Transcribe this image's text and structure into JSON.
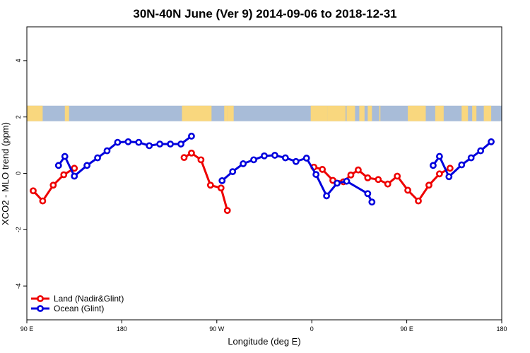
{
  "chart_data": {
    "type": "line",
    "title": "30N-40N June (Ver 9)   2014-09-06 to 2018-12-31",
    "xlabel": "Longitude (deg E)",
    "ylabel": "XCO2 - MLO trend (ppm)",
    "xlim": [
      90,
      540
    ],
    "ylim": [
      -5.2,
      5.2
    ],
    "x_ticks": [
      {
        "value": 90,
        "label": "90 E"
      },
      {
        "value": 180,
        "label": "180"
      },
      {
        "value": 270,
        "label": "90 W"
      },
      {
        "value": 360,
        "label": "0"
      },
      {
        "value": 450,
        "label": "90 E"
      },
      {
        "value": 540,
        "label": "180"
      }
    ],
    "y_ticks": [
      {
        "value": -4,
        "label": "-4"
      },
      {
        "value": -2,
        "label": "-2"
      },
      {
        "value": 0,
        "label": "0"
      },
      {
        "value": 2,
        "label": "2"
      },
      {
        "value": 4,
        "label": "4"
      }
    ],
    "legend_position": "bottom-left",
    "map_strip": {
      "y_range": [
        1.85,
        2.4
      ],
      "ocean_color": "#a8bcd8",
      "land_color": "#f9d77e",
      "land_x_ranges": [
        [
          90,
          105
        ],
        [
          126,
          130
        ],
        [
          237,
          265
        ],
        [
          277,
          280
        ],
        [
          280,
          286
        ],
        [
          359,
          375
        ],
        [
          375,
          392
        ],
        [
          393,
          401
        ],
        [
          405,
          410
        ],
        [
          413,
          417
        ],
        [
          424,
          425
        ],
        [
          451,
          468
        ],
        [
          477,
          485
        ],
        [
          502,
          508
        ],
        [
          512,
          516
        ],
        [
          523,
          530
        ]
      ]
    },
    "series": [
      {
        "name": "Land (Nadir&Glint)",
        "color": "#ee0000",
        "segments": [
          [
            [
              96,
              -0.62
            ],
            [
              105,
              -0.98
            ],
            [
              115,
              -0.42
            ],
            [
              125,
              -0.05
            ],
            [
              135,
              0.18
            ]
          ],
          [
            [
              239,
              0.56
            ],
            [
              246,
              0.72
            ],
            [
              255,
              0.48
            ],
            [
              264,
              -0.42
            ],
            [
              274,
              -0.52
            ],
            [
              280,
              -1.32
            ]
          ],
          [
            [
              362,
              0.22
            ],
            [
              370,
              0.14
            ],
            [
              380,
              -0.25
            ],
            [
              390,
              -0.3
            ],
            [
              397,
              -0.06
            ],
            [
              404,
              0.12
            ],
            [
              413,
              -0.16
            ],
            [
              423,
              -0.22
            ],
            [
              432,
              -0.38
            ],
            [
              441,
              -0.1
            ],
            [
              451,
              -0.6
            ],
            [
              461,
              -0.98
            ],
            [
              471,
              -0.42
            ],
            [
              481,
              -0.02
            ],
            [
              491,
              0.18
            ]
          ]
        ]
      },
      {
        "name": "Ocean (Glint)",
        "color": "#0000dd",
        "segments": [
          [
            [
              120,
              0.28
            ],
            [
              126,
              0.6
            ],
            [
              135,
              -0.1
            ],
            [
              147,
              0.28
            ],
            [
              157,
              0.55
            ],
            [
              166,
              0.8
            ],
            [
              176,
              1.1
            ],
            [
              186,
              1.12
            ],
            [
              196,
              1.1
            ],
            [
              206,
              0.98
            ],
            [
              216,
              1.04
            ],
            [
              226,
              1.04
            ],
            [
              236,
              1.04
            ],
            [
              246,
              1.32
            ]
          ],
          [
            [
              275,
              -0.26
            ],
            [
              285,
              0.06
            ],
            [
              295,
              0.34
            ],
            [
              305,
              0.48
            ],
            [
              315,
              0.62
            ],
            [
              325,
              0.64
            ],
            [
              335,
              0.55
            ],
            [
              345,
              0.42
            ],
            [
              355,
              0.54
            ],
            [
              364,
              -0.04
            ],
            [
              374,
              -0.8
            ],
            [
              384,
              -0.35
            ],
            [
              393,
              -0.28
            ],
            [
              413,
              -0.72
            ],
            [
              417,
              -1.02
            ]
          ],
          [
            [
              475,
              0.28
            ],
            [
              481,
              0.6
            ],
            [
              490,
              -0.12
            ],
            [
              502,
              0.3
            ],
            [
              511,
              0.55
            ],
            [
              520,
              0.8
            ],
            [
              530,
              1.12
            ]
          ]
        ]
      }
    ]
  }
}
